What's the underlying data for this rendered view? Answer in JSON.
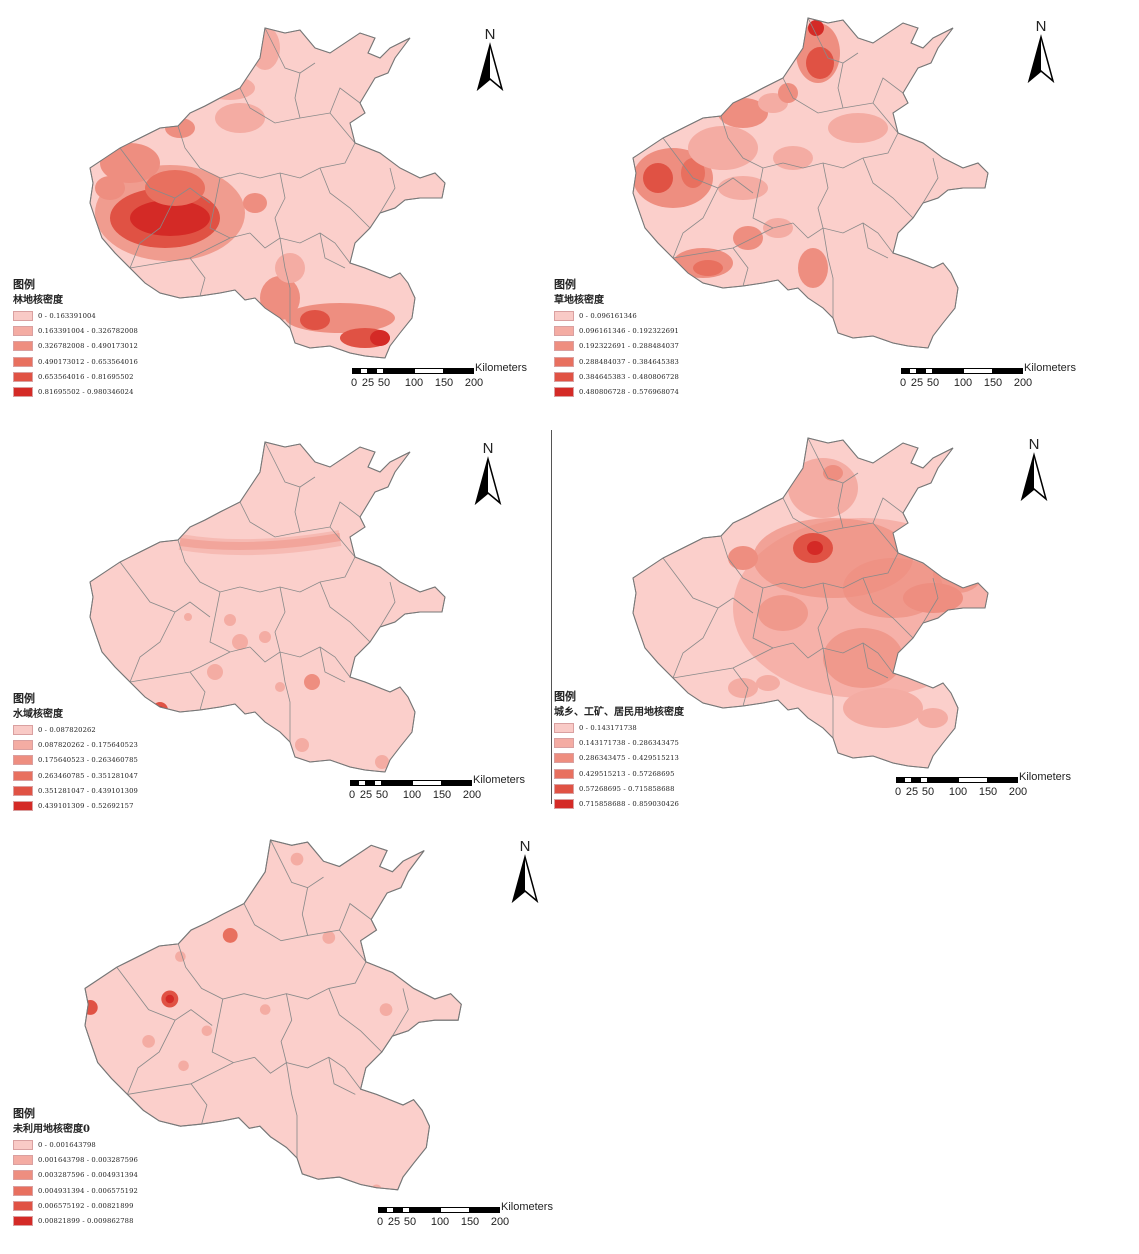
{
  "common": {
    "north_label": "N",
    "scale_unit": "Kilometers",
    "scale_ticks": [
      "0",
      "25",
      "50",
      "100",
      "150",
      "200"
    ],
    "legend_title": "图例",
    "colors": [
      "#f9cac6",
      "#f4aca3",
      "#ee8e80",
      "#e8705f",
      "#e05244",
      "#d42a26"
    ],
    "province_base_color": "#fbcfcb",
    "border_color": "#8a8a8a"
  },
  "panels": [
    {
      "subtitle": "林地核密度",
      "classes": [
        "0 - 0.163391004",
        "0.163391004 - 0.326782008",
        "0.326782008 - 0.490173012",
        "0.490173012 - 0.653564016",
        "0.653564016 - 0.81695502",
        "0.81695502 - 0.980346024"
      ]
    },
    {
      "subtitle": "草地核密度",
      "classes": [
        "0 - 0.096161346",
        "0.096161346 - 0.192322691",
        "0.192322691 - 0.288484037",
        "0.288484037 - 0.384645383",
        "0.384645383 - 0.480806728",
        "0.480806728 - 0.576968074"
      ]
    },
    {
      "subtitle": "水域核密度",
      "classes": [
        "0 - 0.087820262",
        "0.087820262 - 0.175640523",
        "0.175640523 - 0.263460785",
        "0.263460785 - 0.351281047",
        "0.351281047 - 0.439101309",
        "0.439101309 - 0.52692157"
      ]
    },
    {
      "subtitle": "城乡、工矿、居民用地核密度",
      "classes": [
        "0 - 0.143171738",
        "0.143171738 - 0.286343475",
        "0.286343475 - 0.429515213",
        "0.429515213 - 0.57268695",
        "0.57268695 - 0.715858688",
        "0.715858688 - 0.859030426"
      ]
    },
    {
      "subtitle": "未利用地核密度0",
      "classes": [
        "0 - 0.001643798",
        "0.001643798 - 0.003287596",
        "0.003287596 - 0.004931394",
        "0.004931394 - 0.006575192",
        "0.006575192 - 0.00821899",
        "0.00821899 - 0.009862788"
      ]
    }
  ]
}
